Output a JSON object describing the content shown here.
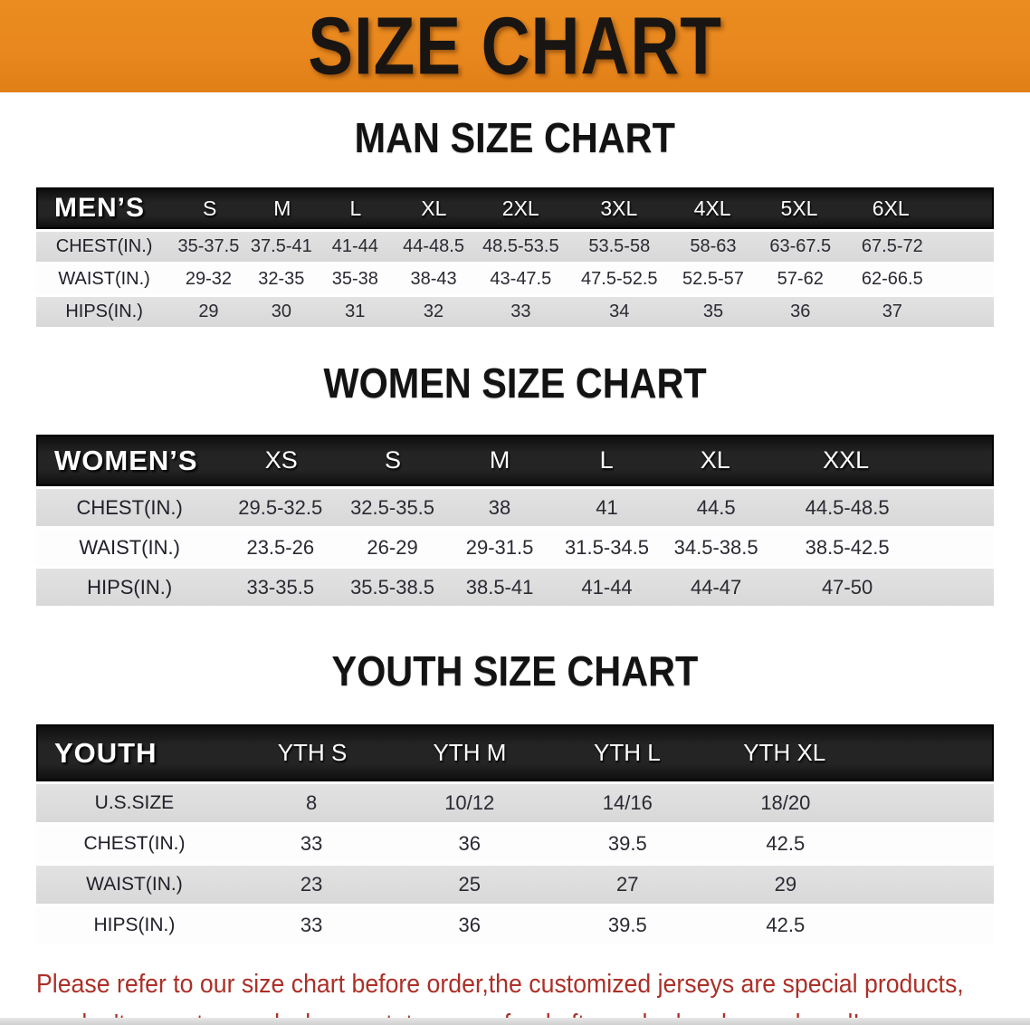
{
  "banner": {
    "title": "SIZE CHART",
    "bg_color": "#e8871d",
    "text_color": "#181512"
  },
  "sections": [
    {
      "title": "MAN SIZE CHART",
      "table": {
        "header_label": "MEN’S",
        "columns": [
          "S",
          "M",
          "L",
          "XL",
          "2XL",
          "3XL",
          "4XL",
          "5XL",
          "6XL"
        ],
        "rows": [
          {
            "label": "CHEST(IN.)",
            "values": [
              "35-37.5",
              "37.5-41",
              "41-44",
              "44-48.5",
              "48.5-53.5",
              "53.5-58",
              "58-63",
              "63-67.5",
              "67.5-72"
            ]
          },
          {
            "label": "WAIST(IN.)",
            "values": [
              "29-32",
              "32-35",
              "35-38",
              "38-43",
              "43-47.5",
              "47.5-52.5",
              "52.5-57",
              "57-62",
              "62-66.5"
            ]
          },
          {
            "label": "HIPS(IN.)",
            "values": [
              "29",
              "30",
              "31",
              "32",
              "33",
              "34",
              "35",
              "36",
              "37"
            ]
          }
        ]
      }
    },
    {
      "title": "WOMEN SIZE CHART",
      "table": {
        "header_label": "WOMEN’S",
        "columns": [
          "XS",
          "S",
          "M",
          "L",
          "XL",
          "XXL"
        ],
        "rows": [
          {
            "label": "CHEST(IN.)",
            "values": [
              "29.5-32.5",
              "32.5-35.5",
              "38",
              "41",
              "44.5",
              "44.5-48.5"
            ]
          },
          {
            "label": "WAIST(IN.)",
            "values": [
              "23.5-26",
              "26-29",
              "29-31.5",
              "31.5-34.5",
              "34.5-38.5",
              "38.5-42.5"
            ]
          },
          {
            "label": "HIPS(IN.)",
            "values": [
              "33-35.5",
              "35.5-38.5",
              "38.5-41",
              "41-44",
              "44-47",
              "47-50"
            ]
          }
        ]
      }
    },
    {
      "title": "YOUTH SIZE CHART",
      "table": {
        "header_label": "YOUTH",
        "columns": [
          "YTH S",
          "YTH M",
          "YTH L",
          "YTH XL"
        ],
        "rows": [
          {
            "label": "U.S.SIZE",
            "values": [
              "8",
              "10/12",
              "14/16",
              "18/20"
            ]
          },
          {
            "label": "CHEST(IN.)",
            "values": [
              "33",
              "36",
              "39.5",
              "42.5"
            ]
          },
          {
            "label": "WAIST(IN.)",
            "values": [
              "23",
              "25",
              "27",
              "29"
            ]
          },
          {
            "label": "HIPS(IN.)",
            "values": [
              "33",
              "36",
              "39.5",
              "42.5"
            ]
          }
        ]
      }
    }
  ],
  "disclaimer": {
    "line1": "Please refer to our size chart before order,the customized jerseys are special products,",
    "line2": "we don't accept cancel, change, teturn or refund after order has been placed!",
    "color": "#ab3028"
  }
}
